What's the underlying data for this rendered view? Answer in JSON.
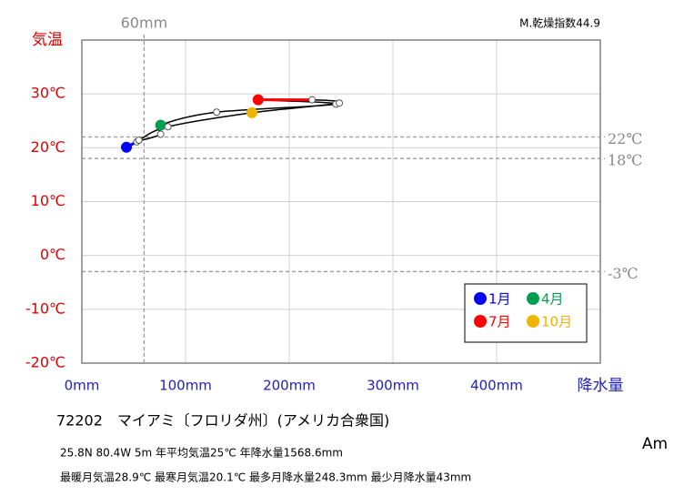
{
  "chart_data": {
    "type": "climograph",
    "annotation": "M.乾燥指数44.9",
    "ylabel": "気温",
    "xlabel": "降水量",
    "xlim": [
      0,
      500
    ],
    "ylim": [
      -20,
      40
    ],
    "xticks": [
      {
        "value": 0,
        "label": "0mm"
      },
      {
        "value": 100,
        "label": "100mm"
      },
      {
        "value": 200,
        "label": "200mm"
      },
      {
        "value": 300,
        "label": "300mm"
      },
      {
        "value": 400,
        "label": "400mm"
      }
    ],
    "yticks": [
      {
        "value": -20,
        "label": "-20℃"
      },
      {
        "value": -10,
        "label": "-10℃"
      },
      {
        "value": 0,
        "label": "0℃"
      },
      {
        "value": 10,
        "label": "10℃"
      },
      {
        "value": 20,
        "label": "20℃"
      },
      {
        "value": 30,
        "label": "30℃"
      }
    ],
    "grid": true,
    "hlines": [
      {
        "value": 22,
        "label": "22℃"
      },
      {
        "value": 18,
        "label": "18℃"
      },
      {
        "value": -3,
        "label": "-3℃"
      }
    ],
    "vline": {
      "value": 60,
      "label": "60mm"
    },
    "series": [
      {
        "name": "1月",
        "color": "#0000ff",
        "line_color": "#0000ff",
        "x": [
          43,
          53,
          76
        ],
        "values": [
          20.1,
          21.1,
          22.5
        ]
      },
      {
        "name": "4月",
        "color": "#00a050",
        "line_color": "#000000",
        "x": [
          76,
          130,
          245
        ],
        "values": [
          24.2,
          26.6,
          28.1
        ]
      },
      {
        "name": "7月",
        "color": "#ff0000",
        "line_color": "#ff0000",
        "x": [
          170,
          222,
          248.3
        ],
        "values": [
          28.9,
          28.9,
          28.3
        ]
      },
      {
        "name": "10月",
        "color": "#f0b400",
        "line_color": "#000000",
        "x": [
          164,
          83,
          55
        ],
        "values": [
          26.5,
          23.9,
          21.4
        ]
      }
    ],
    "station": "72202　マイアミ〔フロリダ州〕(アメリカ合衆国)",
    "info": [
      "25.8N  80.4W 5m  年平均気温25℃ 年降水量1568.6mm",
      "最暖月気温28.9℃ 最寒月気温20.1℃ 最多月降水量248.3mm 最少月降水量43mm"
    ],
    "climate": "Am"
  }
}
